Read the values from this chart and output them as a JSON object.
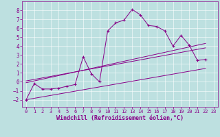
{
  "xlabel": "Windchill (Refroidissement éolien,°C)",
  "xlim": [
    -0.5,
    23.5
  ],
  "ylim": [
    -2.8,
    9.0
  ],
  "xticks": [
    0,
    1,
    2,
    3,
    4,
    5,
    6,
    7,
    8,
    9,
    10,
    11,
    12,
    13,
    14,
    15,
    16,
    17,
    18,
    19,
    20,
    21,
    22,
    23
  ],
  "yticks": [
    -2,
    -1,
    0,
    1,
    2,
    3,
    4,
    5,
    6,
    7,
    8
  ],
  "bg_color": "#bde0e0",
  "line_color": "#880088",
  "series_x": [
    0,
    1,
    2,
    3,
    4,
    5,
    6,
    7,
    8,
    9,
    10,
    11,
    12,
    13,
    14,
    15,
    16,
    17,
    18,
    19,
    20,
    21,
    22
  ],
  "series_y": [
    -2.0,
    -0.2,
    -0.8,
    -0.8,
    -0.7,
    -0.5,
    -0.3,
    2.8,
    0.9,
    0.0,
    5.7,
    6.6,
    6.9,
    8.1,
    7.5,
    6.3,
    6.2,
    5.7,
    4.0,
    5.2,
    4.1,
    2.4,
    2.5
  ],
  "line1_x": [
    0,
    22
  ],
  "line1_y": [
    -2.0,
    1.5
  ],
  "line2_x": [
    0,
    22
  ],
  "line2_y": [
    -0.1,
    4.3
  ],
  "line3_x": [
    0,
    22
  ],
  "line3_y": [
    0.1,
    3.8
  ],
  "grid_color": "#ffffff",
  "xlabel_fontsize": 6,
  "tick_fontsize": 5
}
